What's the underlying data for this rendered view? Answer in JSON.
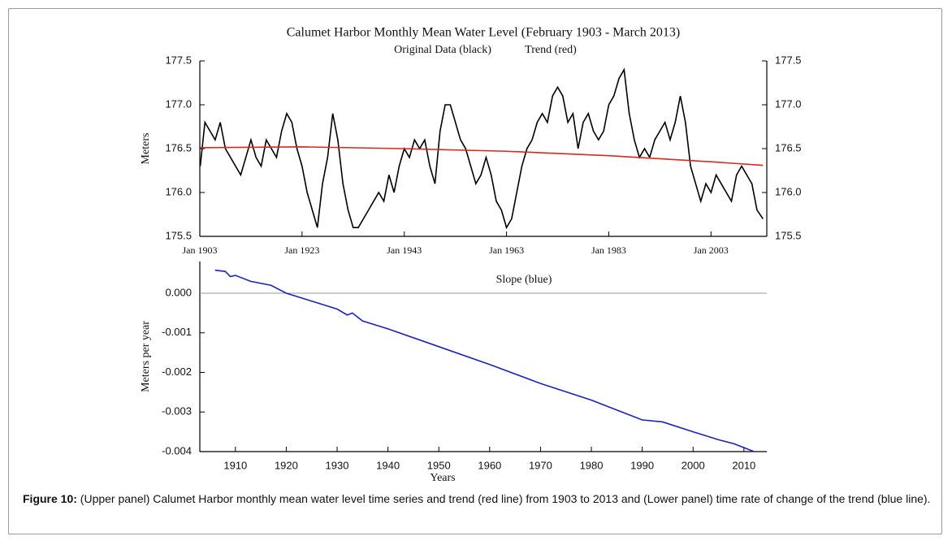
{
  "chart_data": [
    {
      "type": "line",
      "title": "Calumet Harbor Monthly Mean Water Level (February 1903 - March 2013)",
      "ylabel": "Meters",
      "x": [
        "1903-02",
        "1904-01",
        "1905-01",
        "1906-01",
        "1907-01",
        "1908-01",
        "1909-01",
        "1910-01",
        "1911-01",
        "1912-01",
        "1913-01",
        "1914-01",
        "1915-01",
        "1916-01",
        "1917-01",
        "1918-01",
        "1919-01",
        "1920-01",
        "1921-01",
        "1922-01",
        "1923-01",
        "1924-01",
        "1925-01",
        "1926-01",
        "1927-01",
        "1928-01",
        "1929-01",
        "1930-01",
        "1931-01",
        "1932-01",
        "1933-01",
        "1934-01",
        "1935-01",
        "1936-01",
        "1937-01",
        "1938-01",
        "1939-01",
        "1940-01",
        "1941-01",
        "1942-01",
        "1943-01",
        "1944-01",
        "1945-01",
        "1946-01",
        "1947-01",
        "1948-01",
        "1949-01",
        "1950-01",
        "1951-01",
        "1952-01",
        "1953-01",
        "1954-01",
        "1955-01",
        "1956-01",
        "1957-01",
        "1958-01",
        "1959-01",
        "1960-01",
        "1961-01",
        "1962-01",
        "1963-01",
        "1964-01",
        "1965-01",
        "1966-01",
        "1967-01",
        "1968-01",
        "1969-01",
        "1970-01",
        "1971-01",
        "1972-01",
        "1973-01",
        "1974-01",
        "1975-01",
        "1976-01",
        "1977-01",
        "1978-01",
        "1979-01",
        "1980-01",
        "1981-01",
        "1982-01",
        "1983-01",
        "1984-01",
        "1985-01",
        "1986-01",
        "1987-01",
        "1988-01",
        "1989-01",
        "1990-01",
        "1991-01",
        "1992-01",
        "1993-01",
        "1994-01",
        "1995-01",
        "1996-01",
        "1997-01",
        "1998-01",
        "1999-01",
        "2000-01",
        "2001-01",
        "2002-01",
        "2003-01",
        "2004-01",
        "2005-01",
        "2006-01",
        "2007-01",
        "2008-01",
        "2009-01",
        "2010-01",
        "2011-01",
        "2012-01",
        "2013-03"
      ],
      "series": [
        {
          "name": "Original Data (black)",
          "color": "#000000",
          "values": [
            176.3,
            176.8,
            176.7,
            176.6,
            176.8,
            176.5,
            176.4,
            176.3,
            176.2,
            176.4,
            176.6,
            176.4,
            176.3,
            176.6,
            176.5,
            176.4,
            176.7,
            176.9,
            176.8,
            176.5,
            176.3,
            176.0,
            175.8,
            175.6,
            176.1,
            176.4,
            176.9,
            176.6,
            176.1,
            175.8,
            175.6,
            175.6,
            175.7,
            175.8,
            175.9,
            176.0,
            175.9,
            176.2,
            176.0,
            176.3,
            176.5,
            176.4,
            176.6,
            176.5,
            176.6,
            176.3,
            176.1,
            176.7,
            177.0,
            177.0,
            176.8,
            176.6,
            176.5,
            176.3,
            176.1,
            176.2,
            176.4,
            176.2,
            175.9,
            175.8,
            175.6,
            175.7,
            176.0,
            176.3,
            176.5,
            176.6,
            176.8,
            176.9,
            176.8,
            177.1,
            177.2,
            177.1,
            176.8,
            176.9,
            176.5,
            176.8,
            176.9,
            176.7,
            176.6,
            176.7,
            177.0,
            177.1,
            177.3,
            177.4,
            176.9,
            176.6,
            176.4,
            176.5,
            176.4,
            176.6,
            176.7,
            176.8,
            176.6,
            176.8,
            177.1,
            176.8,
            176.3,
            176.1,
            175.9,
            176.1,
            176.0,
            176.2,
            176.1,
            176.0,
            175.9,
            176.2,
            176.3,
            176.2,
            176.1,
            175.8,
            175.7
          ]
        },
        {
          "name": "Trend (red)",
          "color": "#d42a20",
          "x": [
            "1903-02",
            "1923-01",
            "1943-01",
            "1963-01",
            "1983-01",
            "2003-01",
            "2013-03"
          ],
          "values": [
            176.51,
            176.52,
            176.5,
            176.47,
            176.42,
            176.35,
            176.31
          ]
        }
      ],
      "xlim": [
        "1903-01",
        "2013-12"
      ],
      "xticks": [
        {
          "value": "1903-01",
          "label": "Jan 1903"
        },
        {
          "value": "1923-01",
          "label": "Jan 1923"
        },
        {
          "value": "1943-01",
          "label": "Jan 1943"
        },
        {
          "value": "1963-01",
          "label": "Jan 1963"
        },
        {
          "value": "1983-01",
          "label": "Jan 1983"
        },
        {
          "value": "2003-01",
          "label": "Jan 2003"
        }
      ],
      "ylim": [
        175.5,
        177.5
      ],
      "yticks": [
        175.5,
        {
          "value": 176,
          "label": "176.0"
        },
        176.5,
        {
          "value": 177,
          "label": "177.0"
        },
        177.5
      ]
    },
    {
      "type": "line",
      "title": "Slope (blue)",
      "xlabel": "Years",
      "ylabel": "Meters per year",
      "x": [
        1906,
        1908,
        1909,
        1910,
        1913,
        1917,
        1920,
        1925,
        1930,
        1932,
        1933,
        1935,
        1940,
        1950,
        1960,
        1970,
        1980,
        1990,
        1994,
        2000,
        2005,
        2008,
        2010,
        2012
      ],
      "series": [
        {
          "name": "Slope",
          "color": "#1c22b8",
          "values": [
            0.00058,
            0.00055,
            0.00042,
            0.00045,
            0.0003,
            0.0002,
            0.0,
            -0.0002,
            -0.0004,
            -0.00055,
            -0.0005,
            -0.0007,
            -0.0009,
            -0.00135,
            -0.0018,
            -0.00228,
            -0.0027,
            -0.0032,
            -0.00325,
            -0.0035,
            -0.0037,
            -0.0038,
            -0.0039,
            -0.004
          ]
        }
      ],
      "xlim": [
        1903,
        2014.5
      ],
      "xticks": [
        1910,
        1920,
        1930,
        1940,
        1950,
        1960,
        1970,
        1980,
        1990,
        2000,
        2010
      ],
      "ylim": [
        -0.004,
        0.0008
      ],
      "yticks": [
        {
          "value": 0,
          "label": "0.000"
        },
        -0.001,
        -0.002,
        -0.003,
        -0.004
      ]
    }
  ],
  "caption": {
    "label": "Figure 10:",
    "text": " (Upper panel) Calumet Harbor monthly mean water level time series and trend (red line) from 1903 to 2013 and (Lower panel) time rate of change of the trend (blue line)."
  }
}
